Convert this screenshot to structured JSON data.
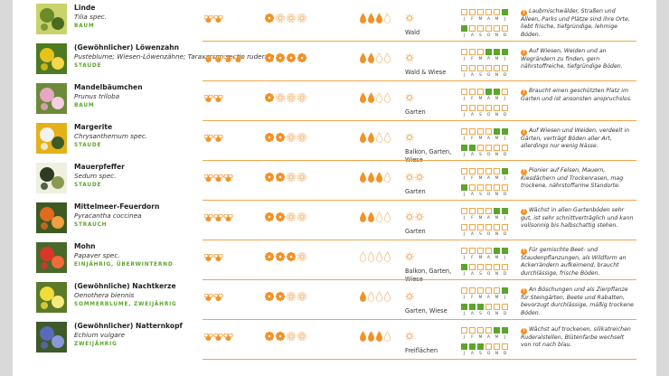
{
  "month_letters": [
    "J",
    "F",
    "M",
    "A",
    "M",
    "J",
    "J",
    "A",
    "S",
    "O",
    "N",
    "D"
  ],
  "colors": {
    "accent": "#f29227",
    "green": "#5aa62a",
    "separator": "#f0a64a"
  },
  "icons": {
    "bee": "bee-icon",
    "flower": "flower-icon",
    "drop": "water-drop-icon",
    "sun": "sun-icon",
    "info": "info-badge-icon"
  },
  "plants": [
    {
      "name": "Linde",
      "latin": "Tilia spec.",
      "category": "BAUM",
      "thumb_colors": [
        "#6b8a2a",
        "#c9d36b",
        "#4a6b1f"
      ],
      "bees": 2,
      "flowers": [
        1,
        0,
        0,
        0
      ],
      "water": 3,
      "sun_icons": 1,
      "location": "Wald",
      "bloom": [
        0,
        0,
        0,
        0,
        0,
        1,
        1,
        0,
        0,
        0,
        0,
        0
      ],
      "description": "Laubmischwälder, Straßen und Alleen, Parks und Plätze sind ihre Orte, liebt frische, tiefgründige, lehmige Böden."
    },
    {
      "name": "(Gewöhnlicher) Löwenzahn",
      "latin": "Pusteblume; Wiesen-Löwenzähne; Taraxacum sectio ruderale",
      "category": "STAUDE",
      "thumb_colors": [
        "#e8c21c",
        "#4d7a22",
        "#f2d84a"
      ],
      "bees": 4,
      "flowers": [
        1,
        1,
        1,
        1
      ],
      "water": 2,
      "sun_icons": 1,
      "location": "Wald & Wiese",
      "bloom": [
        0,
        0,
        0,
        1,
        1,
        1,
        0,
        0,
        0,
        0,
        0,
        0
      ],
      "description": "Auf Wiesen, Weiden und an Wegrändern zu finden, gern nährstoffreiche, tiefgründige Böden."
    },
    {
      "name": "Mandelbäumchen",
      "latin": "Prunus triloba",
      "category": "BAUM",
      "thumb_colors": [
        "#e9a6c4",
        "#6c8a3a",
        "#f5cfe0"
      ],
      "bees": 2,
      "flowers": [
        1,
        0,
        0,
        0
      ],
      "water": 2,
      "sun_icons": 1,
      "location": "Garten",
      "bloom": [
        0,
        0,
        0,
        1,
        1,
        0,
        0,
        0,
        0,
        0,
        0,
        0
      ],
      "description": "Braucht einen geschützten Platz im Garten und ist ansonsten anspruchslos."
    },
    {
      "name": "Margerite",
      "latin": "Chrysanthemum spec.",
      "category": "STAUDE",
      "thumb_colors": [
        "#f2f2f2",
        "#e3b21a",
        "#3f5a25"
      ],
      "bees": 2,
      "flowers": [
        1,
        1,
        0,
        0
      ],
      "water": 2,
      "sun_icons": 1,
      "location": "Balkon, Garten, Wiese",
      "bloom": [
        0,
        0,
        0,
        0,
        1,
        1,
        1,
        1,
        0,
        0,
        0,
        0
      ],
      "description": "Auf Wiesen und Weiden, verdeelt in Gärten, verträgt Böden aller Art, allerdings nur wenig Nässe."
    },
    {
      "name": "Mauerpfeffer",
      "latin": "Sedum spec.",
      "category": "STAUDE",
      "thumb_colors": [
        "#2e3a22",
        "#f0f0e0",
        "#8a9a52"
      ],
      "bees": 3,
      "flowers": [
        1,
        1,
        0,
        0
      ],
      "water": 3,
      "sun_icons": 2,
      "location": "Garten",
      "bloom": [
        0,
        0,
        0,
        0,
        0,
        1,
        1,
        0,
        0,
        0,
        0,
        0
      ],
      "description": "Pionier auf Felsen, Mauern, Kiesdächern und Trockenrasen, mag trockene, nährstoffarme Standorte."
    },
    {
      "name": "Mittelmeer-Feuerdorn",
      "latin": "Pyracantha coccinea",
      "category": "STRAUCH",
      "thumb_colors": [
        "#e06a1e",
        "#3e5a22",
        "#f0a040"
      ],
      "bees": 3,
      "flowers": [
        1,
        1,
        0,
        0
      ],
      "water": 2,
      "sun_icons": 2,
      "location": "Garten",
      "bloom": [
        0,
        0,
        0,
        0,
        1,
        1,
        0,
        0,
        0,
        0,
        0,
        0
      ],
      "description": "Wächst in allen Gartenböden sehr gut, ist sehr schnittverträglich und kann vollsonnig bis halbschattig stehen."
    },
    {
      "name": "Mohn",
      "latin": "Papaver spec.",
      "category": "EINJÄHRIG, ÜBERWINTERND",
      "thumb_colors": [
        "#d9362a",
        "#48692a",
        "#f06a3a"
      ],
      "bees": 2,
      "flowers": [
        1,
        1,
        1,
        0
      ],
      "water": 0,
      "sun_icons": 1,
      "location": "Balkon, Garten, Wiese",
      "bloom": [
        0,
        0,
        0,
        0,
        1,
        1,
        1,
        0,
        0,
        0,
        0,
        0
      ],
      "description": "Für gemischte Beet- und Staudenpflanzungen, als Wildform an Ackerrändern aufkeimend, braucht durchlässige, frische Böden."
    },
    {
      "name": "(Gewöhnliche) Nachtkerze",
      "latin": "Oenothera biennis",
      "category": "SOMMERBLUME, ZWEIJÄHRIG",
      "thumb_colors": [
        "#f0dc3a",
        "#5a7a2a",
        "#f7ea7a"
      ],
      "bees": 2,
      "flowers": [
        1,
        1,
        0,
        0
      ],
      "water": 1,
      "sun_icons": 1,
      "location": "Garten, Wiese",
      "bloom": [
        0,
        0,
        0,
        0,
        0,
        1,
        1,
        1,
        1,
        0,
        0,
        0
      ],
      "description": "An Böschungen und als Zierpflanze für Steingärten, Beete und Rabatten, bevorzugt durchlässige, mäßig trockene Böden."
    },
    {
      "name": "(Gewöhnlicher) Natternkopf",
      "latin": "Echium vulgare",
      "category": "ZWEIJÄHRIG",
      "thumb_colors": [
        "#5a6ab8",
        "#3e5a2a",
        "#8a98d8"
      ],
      "bees": 3,
      "flowers": [
        1,
        1,
        0,
        0
      ],
      "water": 3,
      "sun_icons": 1,
      "location": "Freiflächen",
      "bloom": [
        0,
        0,
        0,
        0,
        1,
        1,
        1,
        1,
        1,
        0,
        0,
        0
      ],
      "description": "Wächst auf trockenen, silikatreichen Ruderalstellen, Blütenfarbe wechselt von rot nach blau."
    }
  ]
}
